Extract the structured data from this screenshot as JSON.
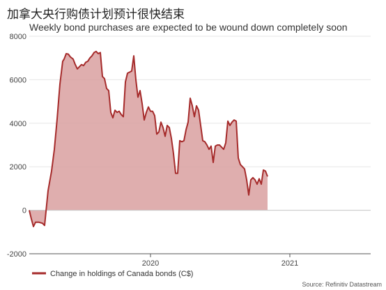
{
  "title": "加拿大央行购债计划预计很快结束",
  "subtitle": "Weekly bond purchases are expected to be wound down completely soon",
  "source": "Source: Refinitiv Datastream",
  "colors": {
    "line": "#a52a2a",
    "fill": "#d9a0a0",
    "grid": "#e6e6e6"
  },
  "chart_data": {
    "type": "area",
    "ylim": [
      -2000,
      8000
    ],
    "y_ticks": [
      -2000,
      0,
      2000,
      4000,
      6000,
      8000
    ],
    "y_tick_labels": [
      "-2000",
      "0",
      "2000",
      "4000",
      "6000",
      "8000"
    ],
    "x_range": [
      2019.13,
      2021.58
    ],
    "x_ticks": [
      {
        "value": 2020.0,
        "label": "2020"
      },
      {
        "value": 2021.0,
        "label": "2021"
      }
    ],
    "grid": "horizontal",
    "legend_position": "bottom-left",
    "series": [
      {
        "name": "Change in holdings of Canada bonds (C$)",
        "points": [
          [
            2019.13,
            0
          ],
          [
            2019.145,
            -400
          ],
          [
            2019.16,
            -750
          ],
          [
            2019.175,
            -550
          ],
          [
            2019.2,
            -550
          ],
          [
            2019.225,
            -600
          ],
          [
            2019.24,
            -700
          ],
          [
            2019.265,
            900
          ],
          [
            2019.29,
            1800
          ],
          [
            2019.31,
            2800
          ],
          [
            2019.33,
            4200
          ],
          [
            2019.35,
            5800
          ],
          [
            2019.37,
            6850
          ],
          [
            2019.38,
            6950
          ],
          [
            2019.395,
            7200
          ],
          [
            2019.41,
            7180
          ],
          [
            2019.425,
            7050
          ],
          [
            2019.445,
            6950
          ],
          [
            2019.46,
            6700
          ],
          [
            2019.475,
            6500
          ],
          [
            2019.49,
            6600
          ],
          [
            2019.505,
            6700
          ],
          [
            2019.52,
            6650
          ],
          [
            2019.535,
            6800
          ],
          [
            2019.55,
            6850
          ],
          [
            2019.565,
            7000
          ],
          [
            2019.58,
            7100
          ],
          [
            2019.595,
            7250
          ],
          [
            2019.61,
            7300
          ],
          [
            2019.625,
            7200
          ],
          [
            2019.64,
            7250
          ],
          [
            2019.655,
            6150
          ],
          [
            2019.67,
            6050
          ],
          [
            2019.685,
            5600
          ],
          [
            2019.7,
            5500
          ],
          [
            2019.715,
            4500
          ],
          [
            2019.73,
            4250
          ],
          [
            2019.745,
            4600
          ],
          [
            2019.76,
            4500
          ],
          [
            2019.775,
            4550
          ],
          [
            2019.79,
            4400
          ],
          [
            2019.805,
            4300
          ],
          [
            2019.82,
            5900
          ],
          [
            2019.835,
            6300
          ],
          [
            2019.85,
            6350
          ],
          [
            2019.865,
            6400
          ],
          [
            2019.88,
            7100
          ],
          [
            2019.895,
            6000
          ],
          [
            2019.91,
            5200
          ],
          [
            2019.925,
            5500
          ],
          [
            2019.94,
            4900
          ],
          [
            2019.955,
            4150
          ],
          [
            2019.97,
            4500
          ],
          [
            2019.985,
            4750
          ],
          [
            2020.0,
            4550
          ],
          [
            2020.015,
            4550
          ],
          [
            2020.03,
            4350
          ],
          [
            2020.045,
            3500
          ],
          [
            2020.06,
            3600
          ],
          [
            2020.075,
            4050
          ],
          [
            2020.09,
            3800
          ],
          [
            2020.105,
            3400
          ],
          [
            2020.12,
            3900
          ],
          [
            2020.135,
            3800
          ],
          [
            2020.15,
            3300
          ],
          [
            2020.165,
            2600
          ],
          [
            2020.18,
            1700
          ],
          [
            2020.195,
            1700
          ],
          [
            2020.21,
            3200
          ],
          [
            2020.225,
            3150
          ],
          [
            2020.24,
            3200
          ],
          [
            2020.255,
            3700
          ],
          [
            2020.27,
            4050
          ],
          [
            2020.285,
            5150
          ],
          [
            2020.3,
            4800
          ],
          [
            2020.315,
            4300
          ],
          [
            2020.33,
            4800
          ],
          [
            2020.345,
            4600
          ],
          [
            2020.36,
            3900
          ],
          [
            2020.375,
            3200
          ],
          [
            2020.39,
            3150
          ],
          [
            2020.405,
            3000
          ],
          [
            2020.42,
            2800
          ],
          [
            2020.435,
            2950
          ],
          [
            2020.45,
            2200
          ],
          [
            2020.465,
            2950
          ],
          [
            2020.48,
            3000
          ],
          [
            2020.495,
            3000
          ],
          [
            2020.51,
            2900
          ],
          [
            2020.525,
            2800
          ],
          [
            2020.54,
            3100
          ],
          [
            2020.555,
            4100
          ],
          [
            2020.57,
            3900
          ],
          [
            2020.585,
            4050
          ],
          [
            2020.6,
            4150
          ],
          [
            2020.615,
            4100
          ],
          [
            2020.63,
            2400
          ],
          [
            2020.645,
            2100
          ],
          [
            2020.66,
            2000
          ],
          [
            2020.675,
            1900
          ],
          [
            2020.69,
            1400
          ],
          [
            2020.705,
            700
          ],
          [
            2020.72,
            1400
          ],
          [
            2020.735,
            1500
          ],
          [
            2020.75,
            1400
          ],
          [
            2020.765,
            1200
          ],
          [
            2020.78,
            1450
          ],
          [
            2020.795,
            1200
          ],
          [
            2020.81,
            1850
          ],
          [
            2020.825,
            1800
          ],
          [
            2020.84,
            1550
          ]
        ]
      }
    ]
  }
}
